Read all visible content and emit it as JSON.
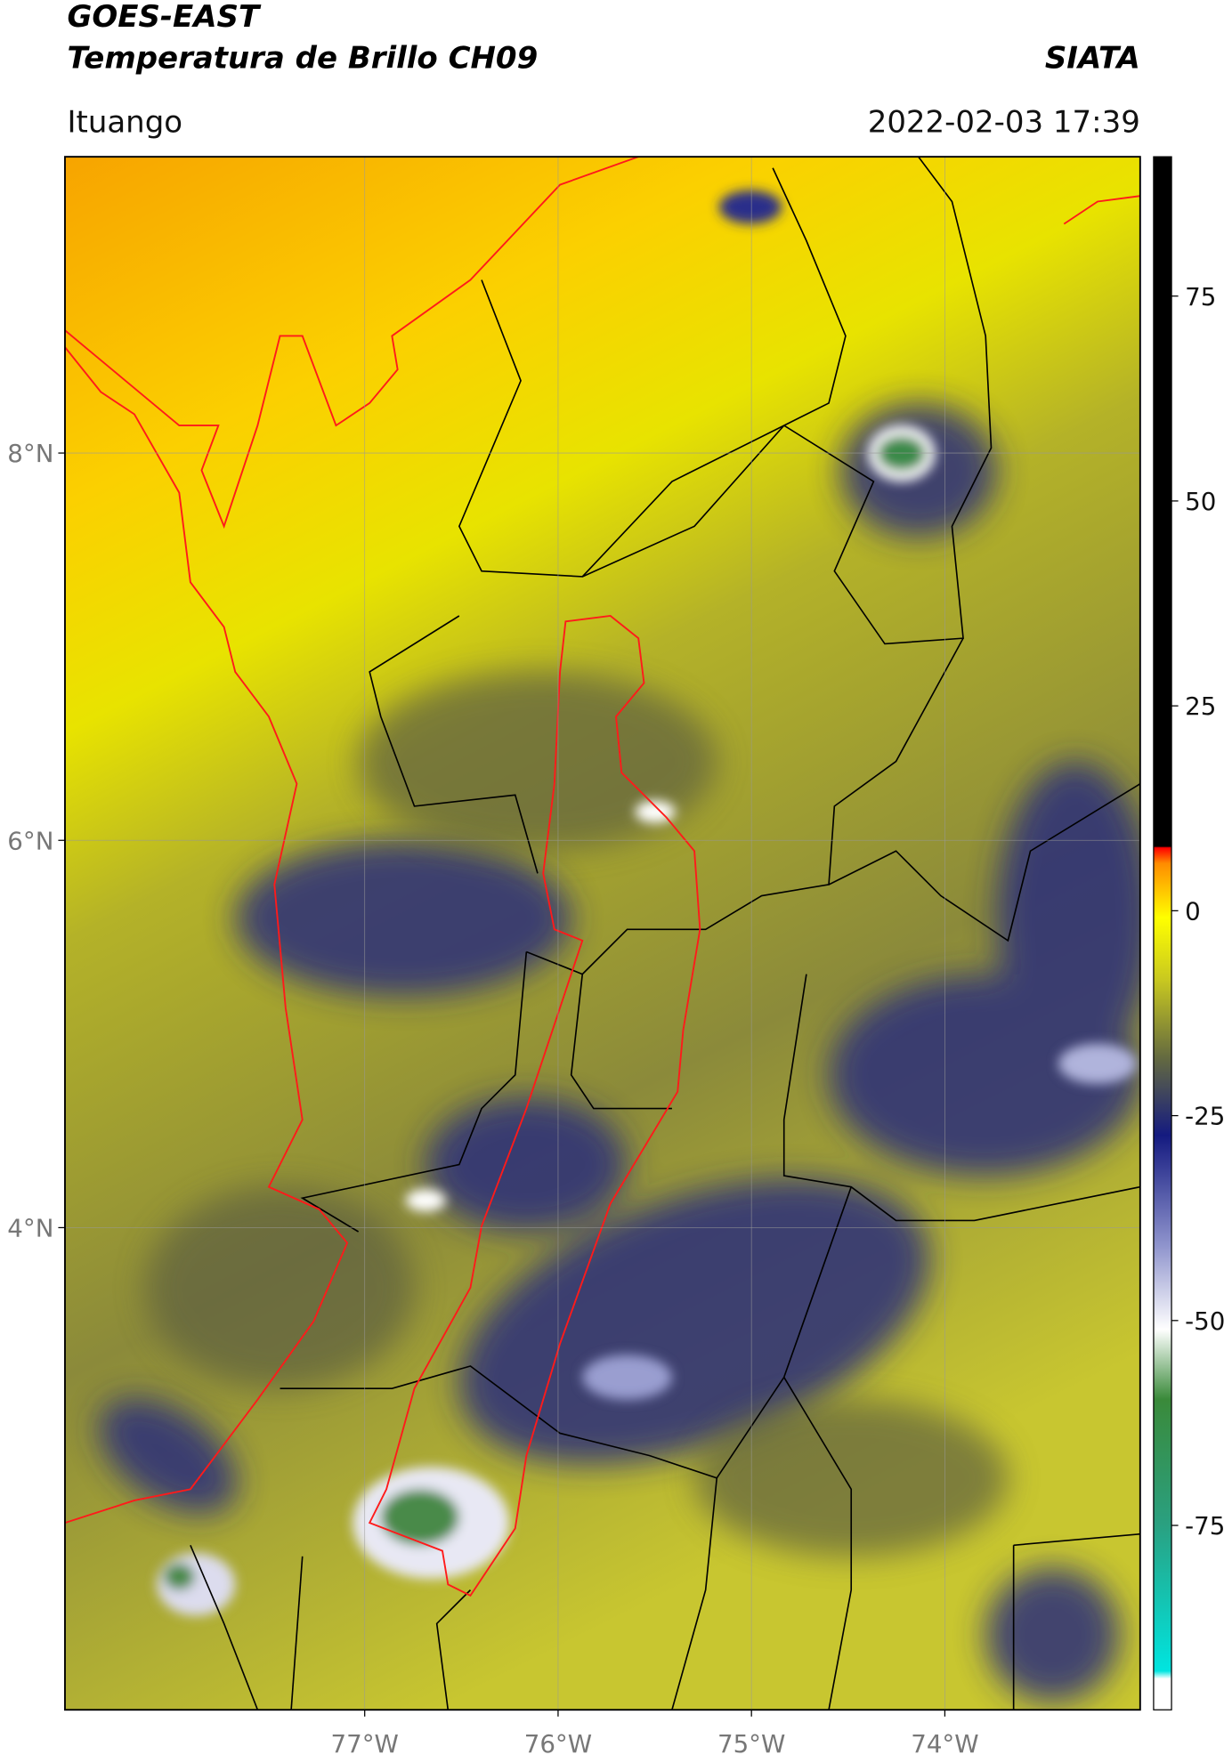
{
  "header": {
    "title_line1": "GOES-EAST",
    "title_line2": "Temperatura de Brillo CH09",
    "organization": "SIATA",
    "region": "Ituango",
    "datetime": "2022-02-03 17:39"
  },
  "map": {
    "xlim": [
      -78.55,
      -72.99
    ],
    "ylim": [
      1.51,
      9.53
    ],
    "lat_ticks": [
      {
        "value": 8,
        "label": "8°N"
      },
      {
        "value": 6,
        "label": "6°N"
      },
      {
        "value": 4,
        "label": "4°N"
      }
    ],
    "lon_ticks": [
      {
        "value": -77,
        "label": "77°W"
      },
      {
        "value": -76,
        "label": "76°W"
      },
      {
        "value": -75,
        "label": "75°W"
      },
      {
        "value": -74,
        "label": "74°W"
      }
    ]
  },
  "colorbar": {
    "lim": [
      -97.5,
      92
    ],
    "ticks": [
      75,
      50,
      25,
      0,
      -25,
      -50,
      -75
    ]
  }
}
